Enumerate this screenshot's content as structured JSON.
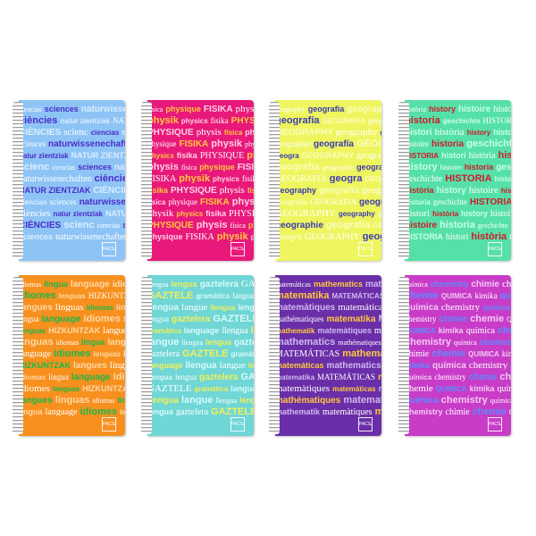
{
  "notebooks": [
    {
      "subject": "sciences",
      "color": "#8ec4f5",
      "ink": [
        "#ffffff",
        "#4a2bc9",
        "#dbeeff"
      ],
      "words": [
        "ciencias",
        "sciences",
        "naturwissenechaften",
        "ciències",
        "natur zientziak",
        "NATUR ZIENTZIAK",
        "CIÈNCIES",
        "scienc"
      ]
    },
    {
      "subject": "physics",
      "color": "#e8197a",
      "ink": [
        "#ffffff",
        "#ffc83c",
        "#ffd0e6"
      ],
      "words": [
        "física",
        "physique",
        "FISIKA",
        "physik",
        "physics",
        "fisika",
        "PHYSIQUE",
        "physis"
      ]
    },
    {
      "subject": "geography",
      "color": "#eef55e",
      "ink": [
        "#ffffff",
        "#3a3ab8",
        "#fbfdc0"
      ],
      "words": [
        "geography",
        "geografia",
        "geographie",
        "geografía",
        "GEOGRAFIA",
        "geogra",
        "GEOGRAPHY"
      ]
    },
    {
      "subject": "history",
      "color": "#55e0a8",
      "ink": [
        "#ffffff",
        "#d11a2a",
        "#c9ffe6"
      ],
      "words": [
        "història",
        "history",
        "histoire",
        "historia",
        "geschichte",
        "HISTORIA",
        "histori"
      ]
    },
    {
      "subject": "language",
      "color": "#f7901e",
      "ink": [
        "#ffffff",
        "#19b84a",
        "#ffd9a8"
      ],
      "words": [
        "idiomas",
        "lingua",
        "language",
        "idiomes",
        "lenguas",
        "HIZKUNTZAK",
        "langues",
        "linguas"
      ]
    },
    {
      "subject": "language",
      "color": "#70d6d6",
      "ink": [
        "#ffffff",
        "#f0f05a",
        "#d8fafa"
      ],
      "words": [
        "llengua",
        "lengua",
        "gaztelera",
        "GAZTELE",
        "gramática",
        "language",
        "llengua",
        "langue"
      ]
    },
    {
      "subject": "mathematics",
      "color": "#6a2fa8",
      "ink": [
        "#ffffff",
        "#ffc83c",
        "#cfb8f0"
      ],
      "words": [
        "matemáticas",
        "mathematics",
        "mathématiques",
        "matematika",
        "MATEMÁTICAS",
        "mathematik",
        "matemàtiques"
      ]
    },
    {
      "subject": "chemistry",
      "color": "#c83cc8",
      "ink": [
        "#ffffff",
        "#5a8cff",
        "#f3c8f3"
      ],
      "words": [
        "química",
        "chemistry",
        "chimie",
        "chemie",
        "QUIMICA",
        "kimika",
        "química",
        "chemistry"
      ]
    }
  ],
  "logo_text": "PACSA"
}
